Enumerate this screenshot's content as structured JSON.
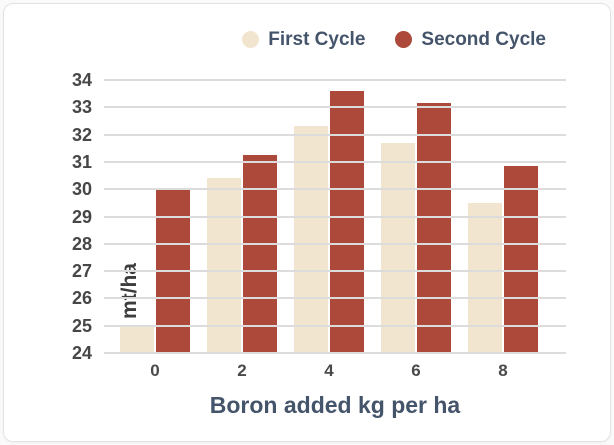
{
  "chart_data": {
    "type": "bar",
    "title": "",
    "categories": [
      "0",
      "2",
      "4",
      "6",
      "8"
    ],
    "series": [
      {
        "name": "First Cycle",
        "color": "#f2e5d0",
        "values": [
          25.0,
          30.4,
          32.3,
          31.7,
          29.5
        ]
      },
      {
        "name": "Second Cycle",
        "color": "#ad493a",
        "values": [
          30.0,
          31.25,
          33.6,
          33.15,
          30.85
        ]
      }
    ],
    "xlabel": "Boron added kg per ha",
    "ylabel": "mt/ha",
    "ylim": [
      24,
      34
    ],
    "ytick_step": 1,
    "grid": true,
    "legend_position": "top-right",
    "gridline_color": "#dcdcdc"
  }
}
